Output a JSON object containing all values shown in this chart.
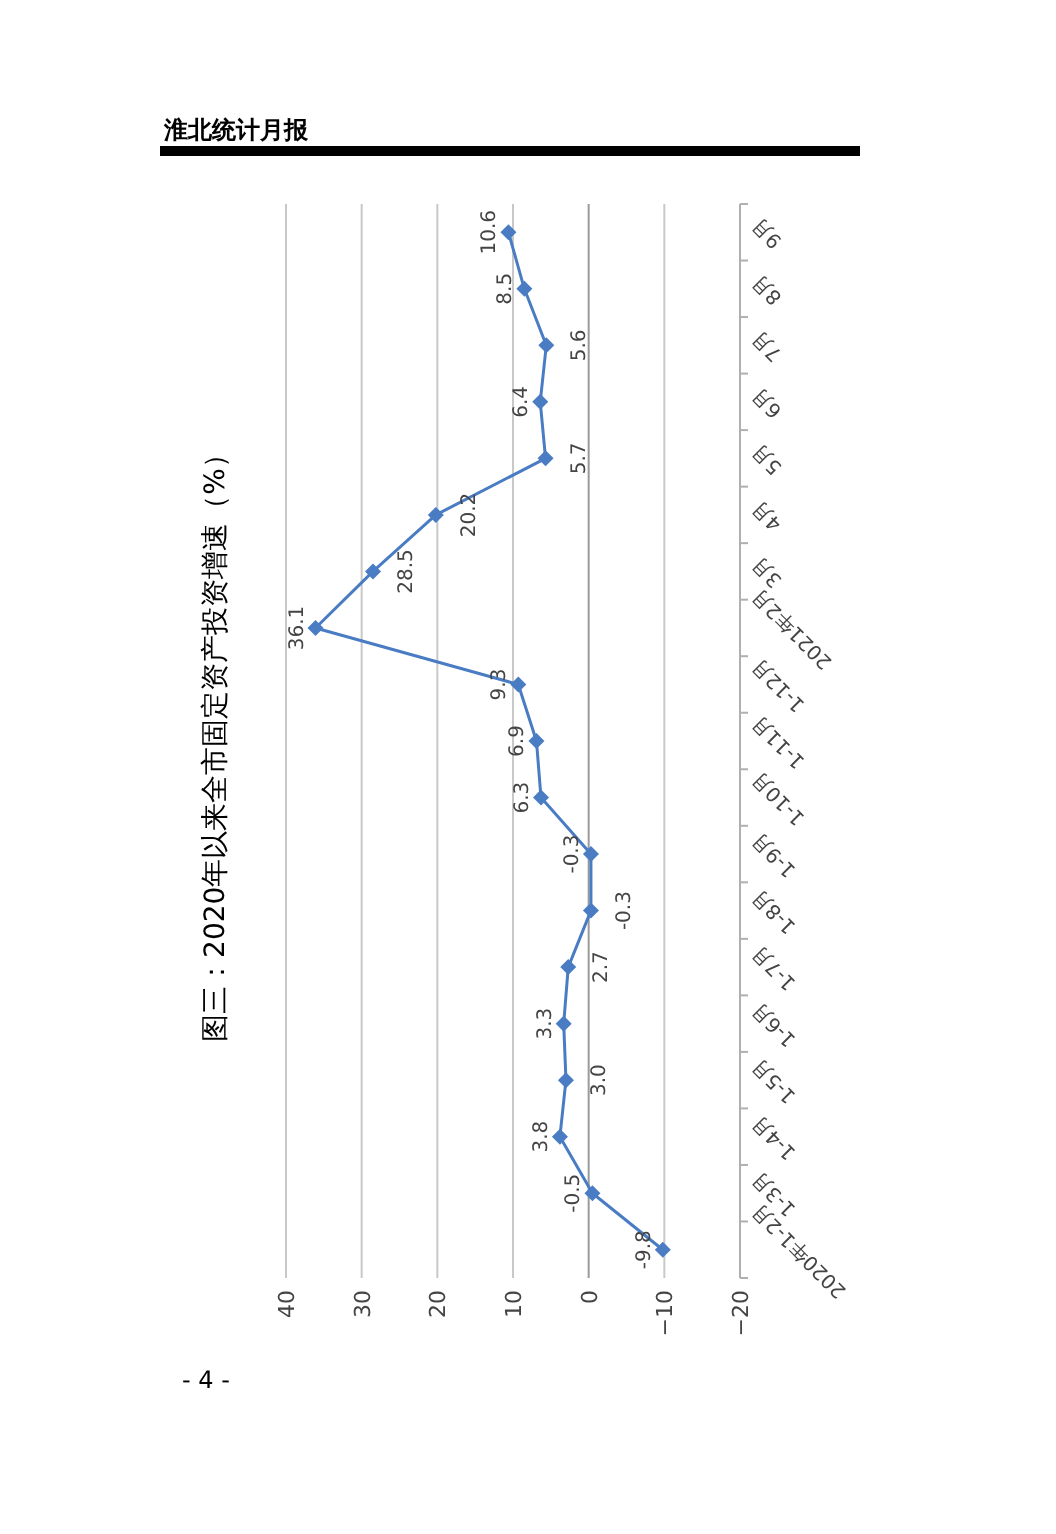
{
  "chart_data": {
    "type": "line",
    "title": "图三：2020年以来全市固定资产投资增速（%）",
    "orientation": "horizontal",
    "categories": [
      "9月",
      "8月",
      "7月",
      "6月",
      "5月",
      "4月",
      "3月",
      "2021年2月",
      "1-12月",
      "1-11月",
      "1-10月",
      "1-9月",
      "1-8月",
      "1-7月",
      "1-6月",
      "1-5月",
      "1-4月",
      "1-3月",
      "2020年1-2月"
    ],
    "values": [
      10.6,
      8.5,
      5.6,
      6.4,
      5.7,
      20.2,
      28.5,
      36.1,
      9.3,
      6.9,
      6.3,
      -0.3,
      -0.3,
      2.7,
      3.3,
      3.0,
      3.8,
      -0.5,
      -9.8
    ],
    "value_labels": [
      "10.6",
      "8.5",
      "5.6",
      "6.4",
      "5.7",
      "20.2",
      "28.5",
      "36.1",
      "9.3",
      "6.9",
      "6.3",
      "-0.3",
      "-0.3",
      "2.7",
      "3.3",
      "3.0",
      "3.8",
      "-0.5",
      "-9.8"
    ],
    "color": "#4a7cc4",
    "marker": "diamond",
    "grid": "x",
    "xlim": [
      40,
      -20
    ],
    "xticks": [
      40,
      30,
      20,
      10,
      0,
      {
        "value": -10,
        "label": "−10"
      },
      {
        "value": -20,
        "label": "−20"
      }
    ],
    "annotations": [
      "淮北统计月报",
      "- 4 -"
    ]
  }
}
